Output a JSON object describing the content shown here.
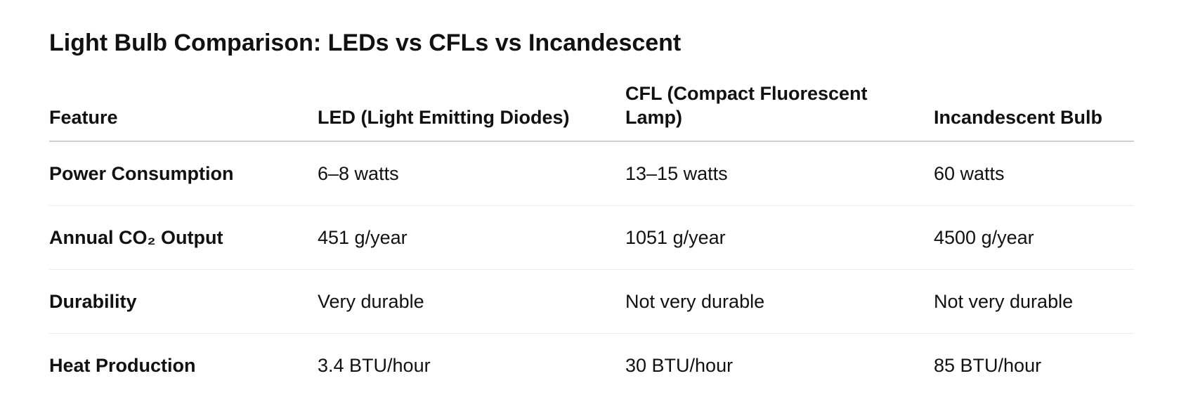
{
  "title": "Light Bulb Comparison: LEDs vs CFLs vs Incandescent",
  "table": {
    "header": [
      "Feature",
      "LED (Light Emitting Diodes)",
      "CFL (Compact Fluorescent Lamp)",
      "Incandescent Bulb"
    ],
    "rows": [
      [
        "Power Consumption",
        "6–8 watts",
        "13–15 watts",
        "60 watts"
      ],
      [
        "Annual CO₂ Output",
        "451 g/year",
        "1051 g/year",
        "4500 g/year"
      ],
      [
        "Durability",
        "Very durable",
        "Not very durable",
        "Not very durable"
      ],
      [
        "Heat Production",
        "3.4 BTU/hour",
        "30 BTU/hour",
        "85 BTU/hour"
      ]
    ]
  }
}
